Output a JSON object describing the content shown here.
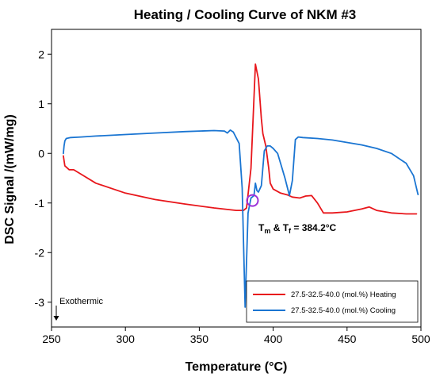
{
  "chart_data": {
    "type": "line",
    "title": "Heating / Cooling Curve of NKM #3",
    "xlabel": "Temperature (°C)",
    "ylabel": "DSC Signal /(mW/mg)",
    "xlim": [
      250,
      500
    ],
    "ylim": [
      -3.5,
      2.5
    ],
    "xticks": [
      250,
      300,
      350,
      400,
      450,
      500
    ],
    "yticks": [
      -3,
      -2,
      -1,
      0,
      1,
      2
    ],
    "grid": false,
    "legend_position": "bottom-right",
    "series": [
      {
        "name": "27.5-32.5-40.0 (mol.%) Heating",
        "color": "#e8161b",
        "x": [
          258,
          259,
          262,
          265,
          270,
          280,
          300,
          320,
          340,
          360,
          375,
          380,
          382,
          385,
          388,
          390,
          392,
          393,
          395,
          397,
          398,
          400,
          405,
          410,
          413,
          418,
          422,
          426,
          430,
          434,
          440,
          450,
          455,
          460,
          465,
          470,
          480,
          490,
          497
        ],
        "y": [
          -0.05,
          -0.25,
          -0.33,
          -0.33,
          -0.42,
          -0.6,
          -0.8,
          -0.93,
          -1.02,
          -1.1,
          -1.15,
          -1.15,
          -1.1,
          -0.3,
          1.8,
          1.5,
          0.7,
          0.4,
          0.15,
          -0.3,
          -0.6,
          -0.72,
          -0.8,
          -0.84,
          -0.88,
          -0.9,
          -0.86,
          -0.85,
          -1.0,
          -1.2,
          -1.2,
          -1.18,
          -1.15,
          -1.12,
          -1.08,
          -1.15,
          -1.2,
          -1.22,
          -1.22
        ]
      },
      {
        "name": "27.5-32.5-40.0 (mol.%) Cooling",
        "color": "#1a75d2",
        "x": [
          258,
          258.5,
          259,
          260,
          263,
          270,
          280,
          300,
          320,
          340,
          360,
          367,
          369,
          371,
          373,
          377,
          379,
          381,
          383,
          385,
          387,
          388,
          389,
          390,
          392,
          394,
          396,
          398,
          400,
          403,
          406,
          408,
          411,
          413,
          415,
          417,
          420,
          430,
          440,
          450,
          460,
          470,
          480,
          490,
          495,
          498
        ],
        "y": [
          0.0,
          0.15,
          0.25,
          0.3,
          0.32,
          0.33,
          0.35,
          0.38,
          0.41,
          0.44,
          0.46,
          0.45,
          0.41,
          0.47,
          0.43,
          0.2,
          -0.7,
          -3.1,
          -1.2,
          -0.9,
          -0.85,
          -0.6,
          -0.75,
          -0.78,
          -0.65,
          0.05,
          0.15,
          0.15,
          0.1,
          0.0,
          -0.3,
          -0.5,
          -0.85,
          -0.55,
          0.28,
          0.33,
          0.32,
          0.3,
          0.27,
          0.22,
          0.17,
          0.1,
          0.0,
          -0.2,
          -0.45,
          -0.83
        ]
      }
    ],
    "annotations": {
      "transition_pre": "T",
      "transition_sub1": "m",
      "transition_mid": " & T",
      "transition_sub2": "f",
      "transition_post": " = 384.2°C",
      "transition_point": {
        "x": 386,
        "y": -0.95
      },
      "marker_color": "#9b30d9",
      "exothermic_label": "Exothermic"
    }
  }
}
